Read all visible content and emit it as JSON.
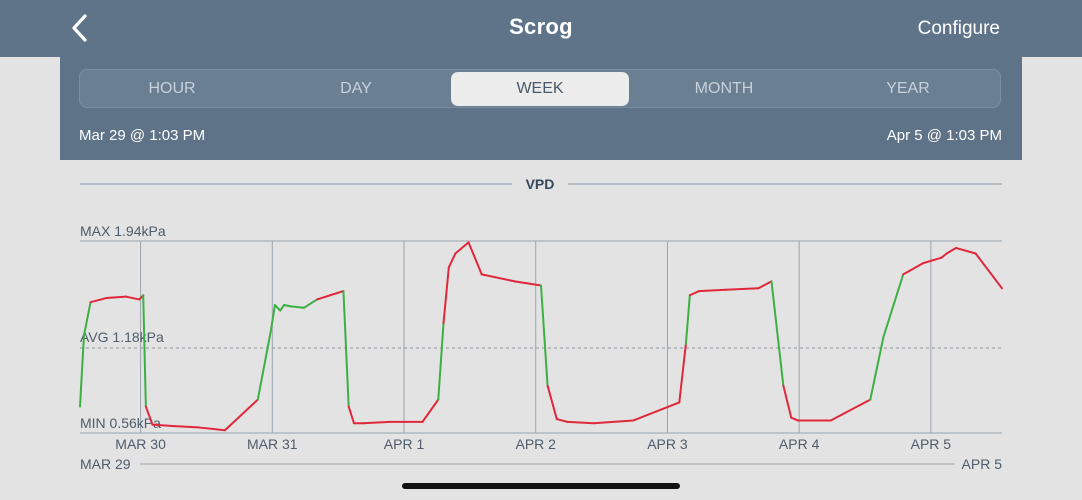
{
  "header": {
    "title": "Scrog",
    "configure_label": "Configure",
    "back_icon": "chevron-left-icon"
  },
  "tabs": [
    {
      "label": "HOUR",
      "active": false
    },
    {
      "label": "DAY",
      "active": false
    },
    {
      "label": "WEEK",
      "active": true
    },
    {
      "label": "MONTH",
      "active": false
    },
    {
      "label": "YEAR",
      "active": false
    }
  ],
  "range": {
    "start": "Mar 29 @ 1:03 PM",
    "end": "Apr 5 @ 1:03 PM"
  },
  "colors": {
    "header_bg": "#607489",
    "in_range": "#3cb044",
    "out_of_range": "#e0283a",
    "background": "#e3e3e3"
  },
  "chart_data": {
    "type": "line",
    "title": "VPD",
    "unit": "kPa",
    "max_label": "MAX 1.94kPa",
    "avg_label": "AVG 1.18kPa",
    "min_label": "MIN 0.56kPa",
    "ylim": [
      0.56,
      1.94
    ],
    "avg": 1.18,
    "x_tick_labels": [
      "MAR 30",
      "MAR 31",
      "APR 1",
      "APR 2",
      "APR 3",
      "APR 4",
      "APR 5"
    ],
    "x_start_label": "MAR 29",
    "x_end_label": "APR 5",
    "x_range_days": [
      0,
      7
    ],
    "ideal_range": [
      1.0,
      1.5
    ],
    "series": [
      {
        "x": [
          0.0,
          0.03,
          0.08,
          0.2,
          0.35,
          0.45,
          0.48,
          0.5,
          0.55,
          0.7,
          0.9,
          1.1,
          1.35,
          1.45,
          1.48,
          1.52,
          1.55,
          1.6,
          1.7,
          1.8,
          1.9,
          2.0,
          2.04,
          2.08,
          2.15,
          2.35,
          2.6,
          2.72,
          2.76,
          2.8,
          2.85,
          2.95,
          3.05,
          3.3,
          3.5,
          3.55,
          3.62,
          3.7,
          3.9,
          4.2,
          4.55,
          4.6,
          4.63,
          4.7,
          4.9,
          5.15,
          5.25,
          5.34,
          5.4,
          5.45,
          5.55,
          5.7,
          6.0,
          6.1,
          6.25,
          6.4,
          6.54,
          6.58,
          6.65,
          6.8,
          7.0
        ],
        "y": [
          0.75,
          1.26,
          1.5,
          1.53,
          1.54,
          1.52,
          1.55,
          0.75,
          0.62,
          0.61,
          0.6,
          0.58,
          0.8,
          1.3,
          1.48,
          1.44,
          1.48,
          1.47,
          1.46,
          1.52,
          1.55,
          1.58,
          0.75,
          0.63,
          0.63,
          0.64,
          0.64,
          0.8,
          1.35,
          1.75,
          1.85,
          1.93,
          1.7,
          1.65,
          1.62,
          0.9,
          0.66,
          0.64,
          0.63,
          0.65,
          0.78,
          1.2,
          1.55,
          1.58,
          1.59,
          1.6,
          1.65,
          0.9,
          0.67,
          0.65,
          0.65,
          0.65,
          0.8,
          1.25,
          1.7,
          1.78,
          1.82,
          1.85,
          1.89,
          1.85,
          1.6
        ]
      }
    ]
  }
}
